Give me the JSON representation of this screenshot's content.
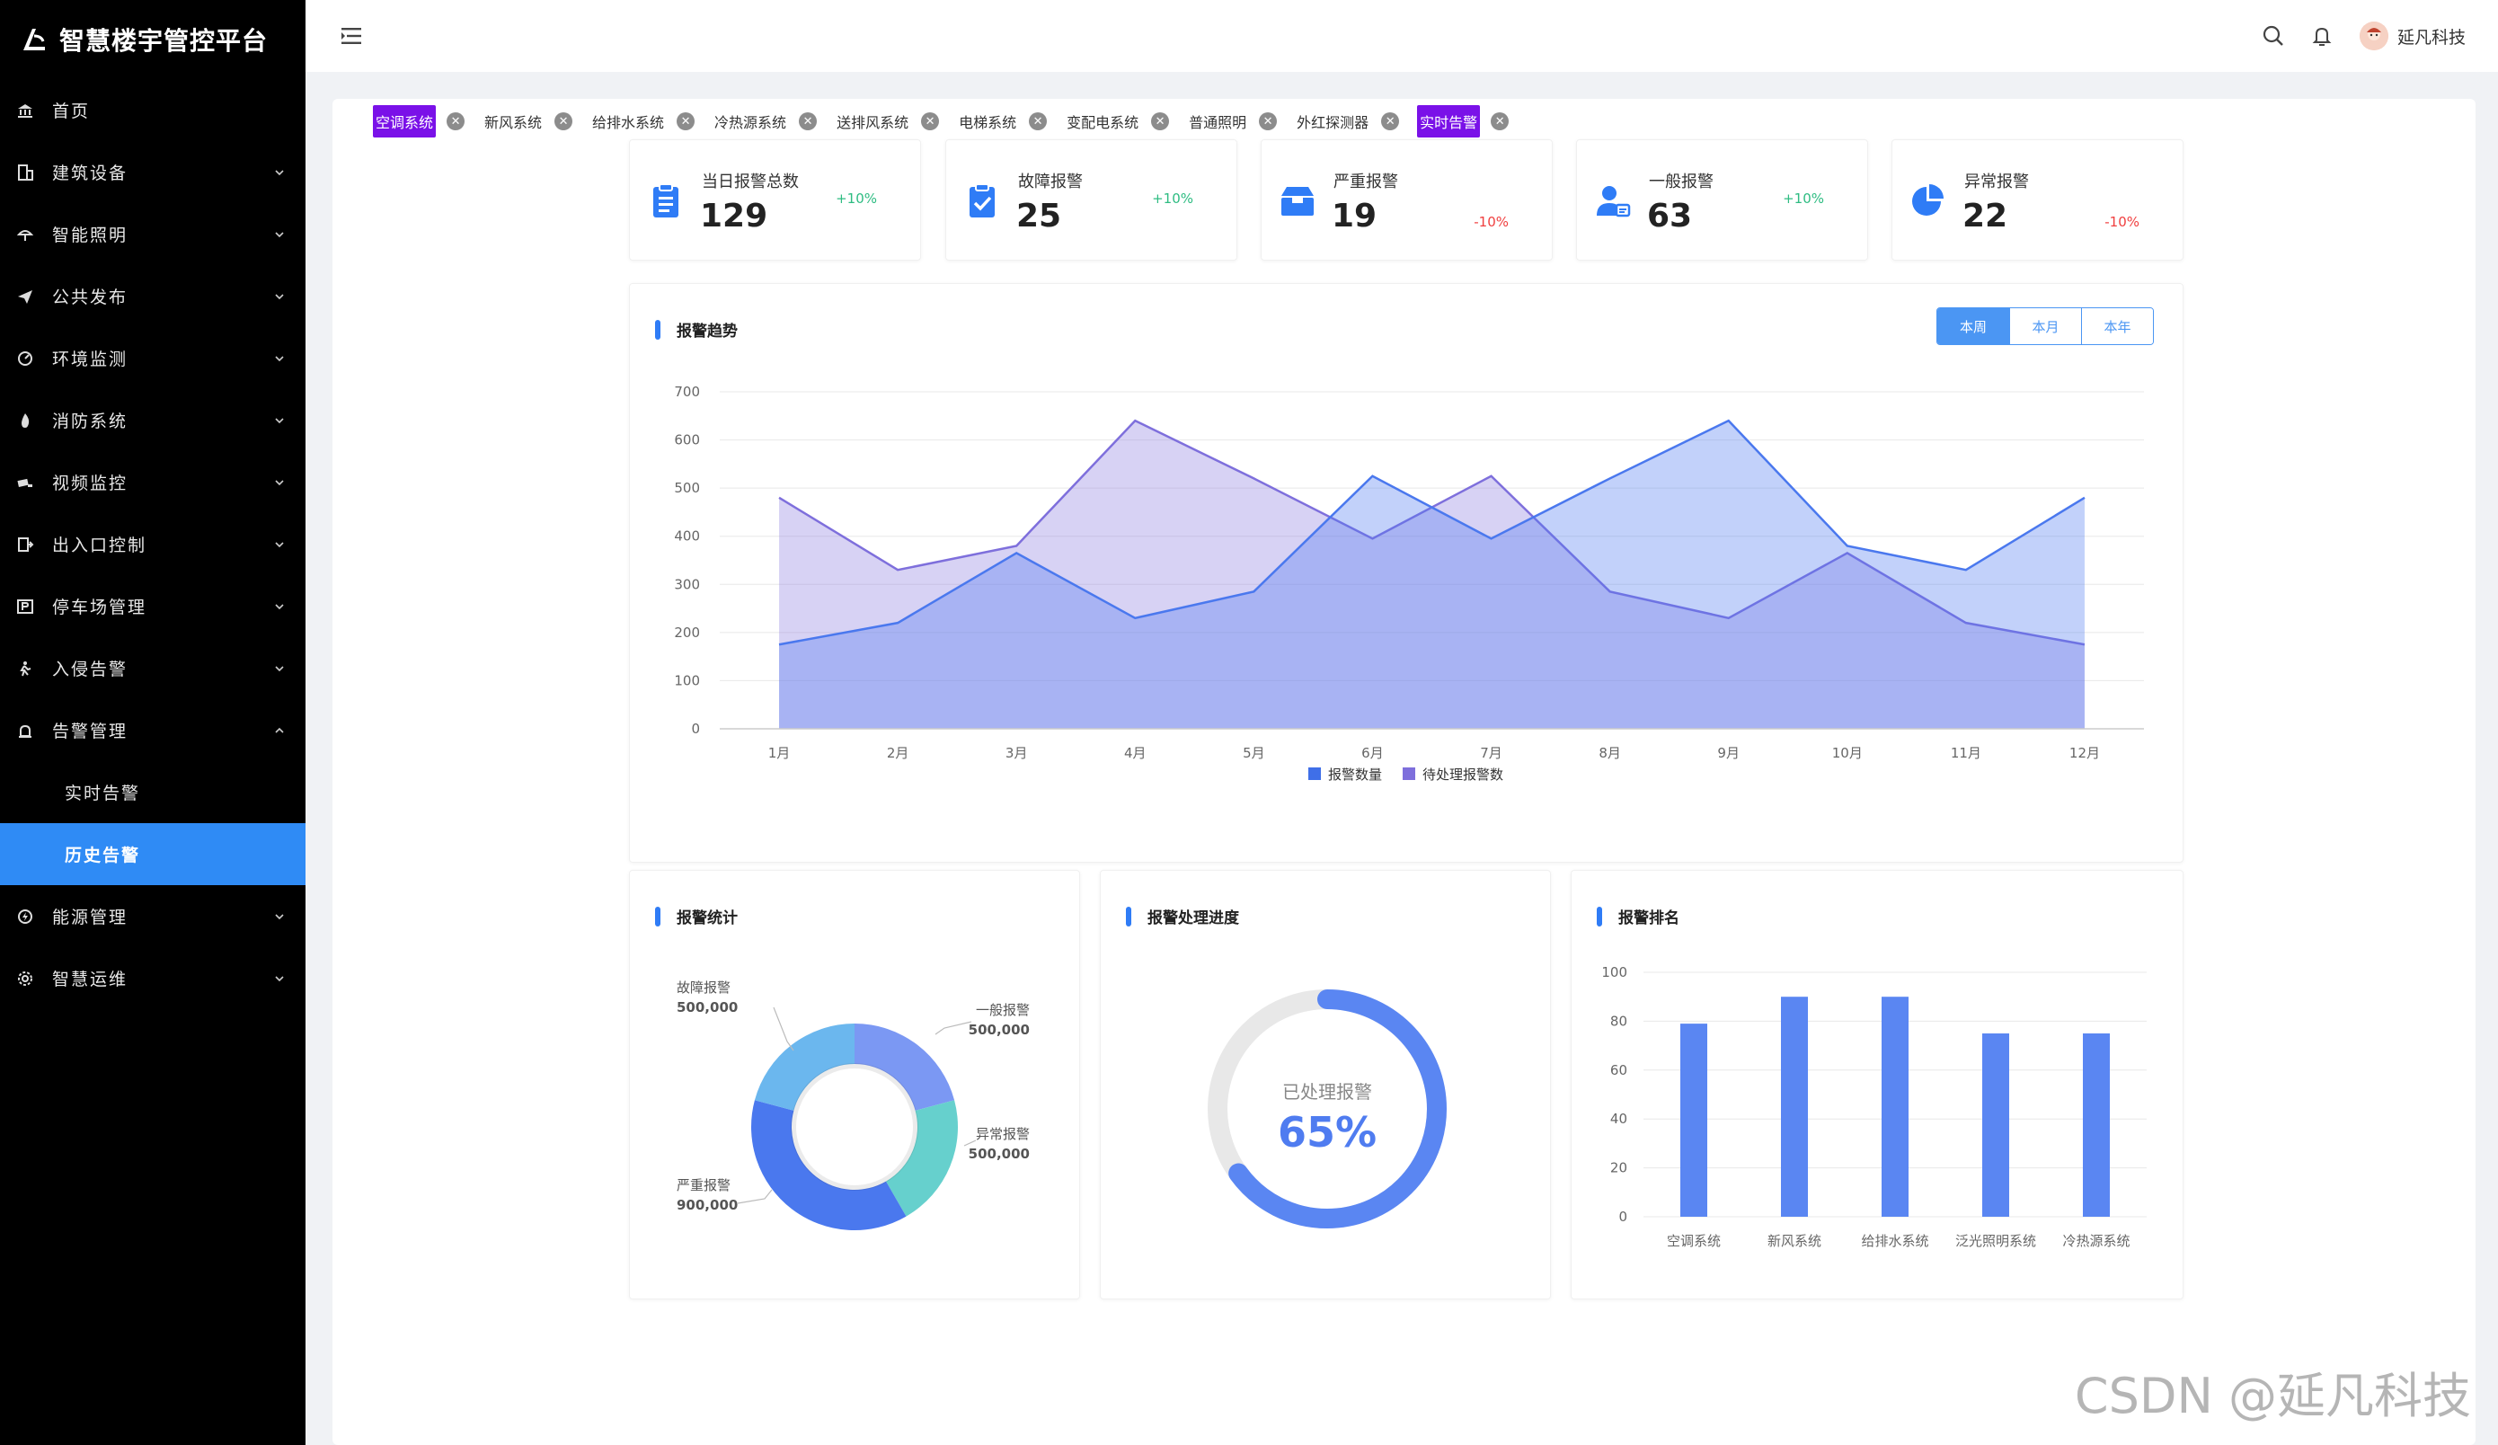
{
  "brand": {
    "title": "智慧楼宇管控平台"
  },
  "sidebar": {
    "items": [
      {
        "label": "首页",
        "icon": "bank-icon",
        "chevron": false
      },
      {
        "label": "建筑设备",
        "icon": "building-icon",
        "chevron": true
      },
      {
        "label": "智能照明",
        "icon": "lamp-icon",
        "chevron": true
      },
      {
        "label": "公共发布",
        "icon": "send-icon",
        "chevron": true
      },
      {
        "label": "环境监测",
        "icon": "gauge-icon",
        "chevron": true
      },
      {
        "label": "消防系统",
        "icon": "fire-icon",
        "chevron": true
      },
      {
        "label": "视频监控",
        "icon": "camera-icon",
        "chevron": true
      },
      {
        "label": "出入口控制",
        "icon": "door-icon",
        "chevron": true
      },
      {
        "label": "停车场管理",
        "icon": "parking-icon",
        "chevron": true
      },
      {
        "label": "入侵告警",
        "icon": "intruder-icon",
        "chevron": true
      },
      {
        "label": "告警管理",
        "icon": "alarm-icon",
        "chevron": true,
        "expanded": true
      }
    ],
    "sub_items": [
      {
        "label": "实时告警",
        "active": false
      },
      {
        "label": "历史告警",
        "active": true
      }
    ],
    "tail_items": [
      {
        "label": "能源管理",
        "icon": "energy-icon",
        "chevron": true
      },
      {
        "label": "智慧运维",
        "icon": "cog-icon",
        "chevron": true
      }
    ]
  },
  "header": {
    "username": "延凡科技"
  },
  "tabs": [
    {
      "label": "空调系统",
      "highlight": true
    },
    {
      "label": "新风系统",
      "highlight": false
    },
    {
      "label": "给排水系统",
      "highlight": false
    },
    {
      "label": "冷热源系统",
      "highlight": false
    },
    {
      "label": "送排风系统",
      "highlight": false
    },
    {
      "label": "电梯系统",
      "highlight": false
    },
    {
      "label": "变配电系统",
      "highlight": false
    },
    {
      "label": "普通照明",
      "highlight": false
    },
    {
      "label": "外红探测器",
      "highlight": false
    },
    {
      "label": "实时告警",
      "highlight": true
    }
  ],
  "stats": [
    {
      "label": "当日报警总数",
      "value": "129",
      "trend": "+10%",
      "dir": "up",
      "icon": "clipboard-icon"
    },
    {
      "label": "故障报警",
      "value": "25",
      "trend": "+10%",
      "dir": "up",
      "icon": "clipboard-check-icon"
    },
    {
      "label": "严重报警",
      "value": "19",
      "trend": "-10%",
      "dir": "down",
      "icon": "box-icon"
    },
    {
      "label": "一般报警",
      "value": "63",
      "trend": "+10%",
      "dir": "up",
      "icon": "user-card-icon"
    },
    {
      "label": "异常报警",
      "value": "22",
      "trend": "-10%",
      "dir": "down",
      "icon": "pie-icon"
    }
  ],
  "trend_panel": {
    "title": "报警趋势",
    "periods": [
      "本周",
      "本月",
      "本年"
    ],
    "active_period": 0
  },
  "stats_panel": {
    "title": "报警统计"
  },
  "progress_panel": {
    "title": "报警处理进度",
    "label": "已处理报警",
    "value_text": "65%"
  },
  "ranking_panel": {
    "title": "报警排名"
  },
  "colors": {
    "primary": "#2f8bf5",
    "tab_highlight": "#7a11e8",
    "series1": "#4f7cf0",
    "series2": "#8c7fe0"
  },
  "chart_data": [
    {
      "type": "area",
      "categories": [
        "1月",
        "2月",
        "3月",
        "4月",
        "5月",
        "6月",
        "7月",
        "8月",
        "9月",
        "10月",
        "11月",
        "12月"
      ],
      "series": [
        {
          "name": "报警数量",
          "values": [
            175,
            220,
            365,
            230,
            285,
            525,
            395,
            520,
            640,
            380,
            330,
            480
          ]
        },
        {
          "name": "待处理报警数",
          "values": [
            480,
            330,
            380,
            640,
            520,
            395,
            525,
            285,
            230,
            365,
            220,
            175
          ]
        }
      ],
      "ylim": [
        0,
        700
      ],
      "yticks": [
        0,
        100,
        200,
        300,
        400,
        500,
        600,
        700
      ],
      "legend": "bottom",
      "grid": true
    },
    {
      "type": "pie",
      "labels": [
        "故障报警",
        "一般报警",
        "异常报警",
        "严重报警"
      ],
      "values": [
        500000,
        500000,
        500000,
        900000
      ],
      "value_labels": [
        "500,000",
        "500,000",
        "500,000",
        "900,000"
      ],
      "donut": true
    },
    {
      "type": "gauge",
      "value": 65,
      "max": 100
    },
    {
      "type": "bar",
      "categories": [
        "空调系统",
        "新风系统",
        "给排水系统",
        "泛光照明系统",
        "冷热源系统"
      ],
      "values": [
        79,
        90,
        90,
        75,
        75
      ],
      "ylim": [
        0,
        100
      ],
      "yticks": [
        0,
        20,
        40,
        60,
        80,
        100
      ],
      "grid": true
    }
  ],
  "watermark": "CSDN @延凡科技"
}
